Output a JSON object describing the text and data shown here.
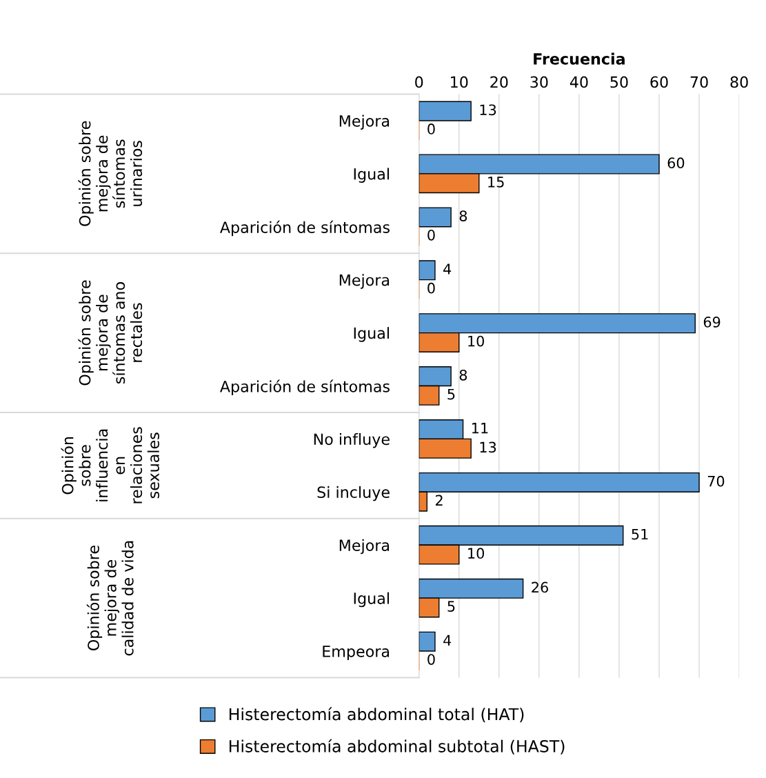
{
  "chart_data": {
    "type": "bar",
    "orientation": "horizontal",
    "xlabel": "Frecuencia",
    "categories": [
      "Mejora",
      "Igual",
      "Aparición de síntomas",
      "Mejora",
      "Igual",
      "Aparición de síntomas",
      "No influye",
      "Si incluye",
      "Mejora",
      "Igual",
      "Empeora"
    ],
    "series": [
      {
        "name": "Histerectomía abdominal total (HAT)",
        "color": "#5b9bd5",
        "values": [
          13,
          60,
          8,
          4,
          69,
          8,
          11,
          70,
          51,
          26,
          4
        ]
      },
      {
        "name": "Histerectomía abdominal subtotal (HAST)",
        "color": "#ed7d31",
        "values": [
          0,
          15,
          0,
          0,
          10,
          5,
          13,
          2,
          10,
          5,
          0
        ]
      }
    ],
    "xlim": [
      0,
      80
    ],
    "xticks": [
      0,
      10,
      20,
      30,
      40,
      50,
      60,
      70,
      80
    ],
    "grid": "x",
    "data_labels": true,
    "legend": "bottom",
    "annotations": [
      "Opinión sobre\nmejora de\nsíntomas\nurinarios",
      "Opinión sobre\nmejora de\nsíntomas ano\nrectales",
      "Opinión\nsobre\ninfluencia\nen\nrelaciones\nsexuales",
      "Opinión sobre\nmejora de\ncalidad de vida"
    ]
  }
}
